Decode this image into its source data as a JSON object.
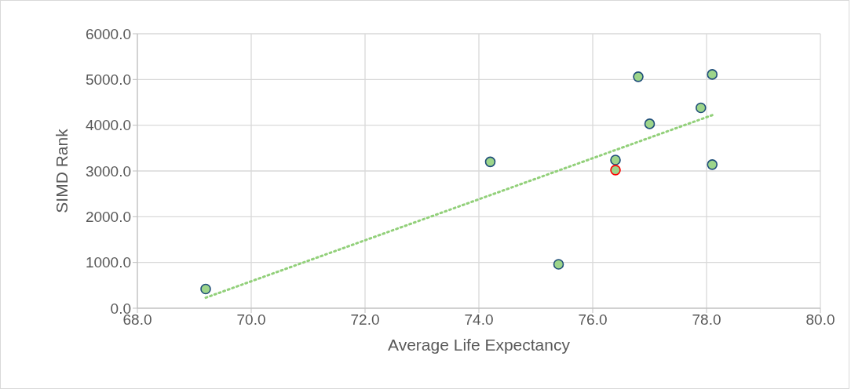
{
  "chart_data": {
    "type": "scatter",
    "xlabel": "Average Life Expectancy",
    "ylabel": "SIMD Rank",
    "xlim": [
      68,
      80
    ],
    "ylim": [
      0,
      6000
    ],
    "xticks": [
      {
        "value": 68,
        "label": "68.0"
      },
      {
        "value": 70,
        "label": "70.0"
      },
      {
        "value": 72,
        "label": "72.0"
      },
      {
        "value": 74,
        "label": "74.0"
      },
      {
        "value": 76,
        "label": "76.0"
      },
      {
        "value": 78,
        "label": "78.0"
      },
      {
        "value": 80,
        "label": "80.0"
      }
    ],
    "yticks": [
      {
        "value": 0,
        "label": "0.0"
      },
      {
        "value": 1000,
        "label": "1000.0"
      },
      {
        "value": 2000,
        "label": "2000.0"
      },
      {
        "value": 3000,
        "label": "3000.0"
      },
      {
        "value": 4000,
        "label": "4000.0"
      },
      {
        "value": 5000,
        "label": "5000.0"
      },
      {
        "value": 6000,
        "label": "6000.0"
      }
    ],
    "grid": true,
    "legend": false,
    "marker": "circle",
    "series": [
      {
        "color": "#9dd58a",
        "x": [
          69.2,
          74.2,
          75.4,
          76.4,
          76.8,
          77.0,
          77.9,
          78.1,
          78.1
        ],
        "values": [
          420,
          3200,
          960,
          3240,
          5060,
          4030,
          4380,
          5110,
          3140
        ]
      },
      {
        "color": "#ff0000",
        "x": [
          76.4
        ],
        "values": [
          3020
        ]
      },
      {
        "type": "line",
        "marker": "none",
        "line_style": "dotted",
        "color": "#92d07a",
        "x": [
          69.2,
          78.1
        ],
        "values": [
          230,
          4220
        ]
      }
    ]
  }
}
